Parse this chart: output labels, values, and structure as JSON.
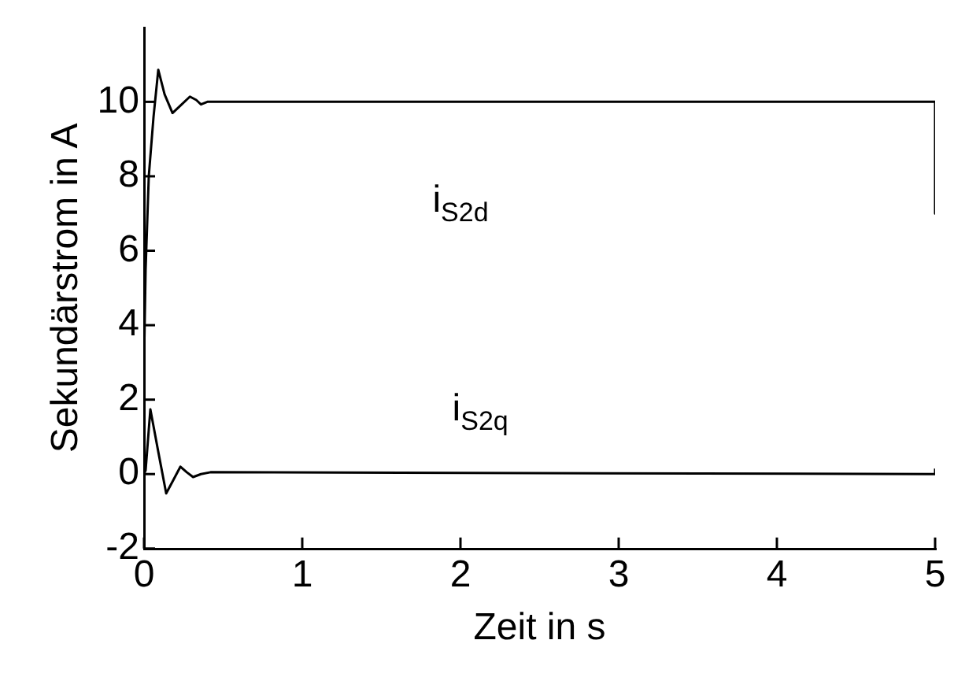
{
  "chart_data": {
    "type": "line",
    "xlabel": "Zeit in s",
    "ylabel": "Sekundärstrom in A",
    "xlim": [
      0,
      5
    ],
    "xticks": [
      0,
      1,
      2,
      3,
      4,
      5
    ],
    "ylim": [
      -2,
      12
    ],
    "yticks": [
      -2,
      0,
      2,
      4,
      6,
      8,
      10
    ],
    "grid": false,
    "legend": false,
    "marker": "none",
    "line_style": "solid",
    "series": [
      {
        "name": "i$_{S2d}$",
        "color": "#000000",
        "x": [
          0,
          0.01,
          0.03,
          0.06,
          0.09,
          0.13,
          0.18,
          0.23,
          0.29,
          0.33,
          0.36,
          0.4,
          5,
          5
        ],
        "values": [
          3,
          5.5,
          8,
          9.6,
          10.86,
          10.2,
          9.7,
          9.9,
          10.14,
          10.05,
          9.93,
          10,
          10,
          7
        ]
      },
      {
        "name": "i$_{S2q}$",
        "color": "#000000",
        "x": [
          0,
          0.01,
          0.04,
          0.09,
          0.14,
          0.18,
          0.23,
          0.27,
          0.31,
          0.36,
          0.42,
          5,
          5
        ],
        "values": [
          0,
          0.1,
          1.74,
          0.6,
          -0.52,
          -0.2,
          0.2,
          0.05,
          -0.08,
          0,
          0.05,
          0,
          0.15
        ]
      }
    ]
  }
}
